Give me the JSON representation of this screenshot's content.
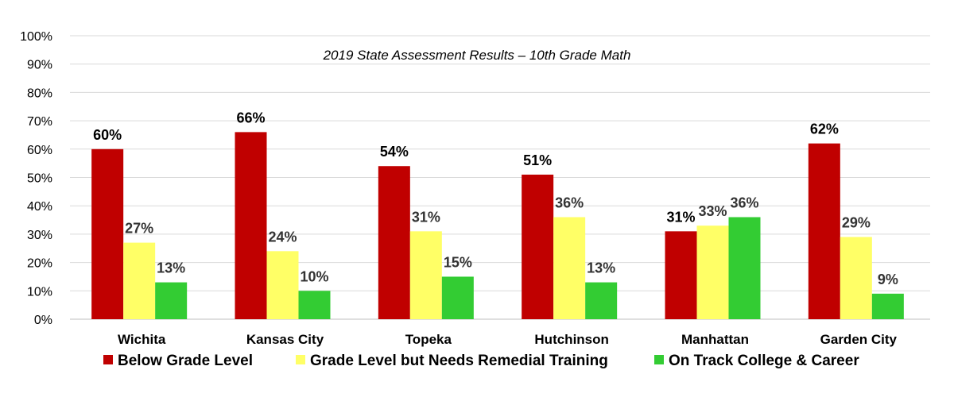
{
  "chart_data": {
    "type": "bar",
    "title": "2019 State Assessment Results – 10th Grade Math",
    "categories": [
      "Wichita",
      "Kansas City",
      "Topeka",
      "Hutchinson",
      "Manhattan",
      "Garden City"
    ],
    "series": [
      {
        "name": "Below Grade Level",
        "color": "#C00000",
        "values": [
          60,
          66,
          54,
          51,
          31,
          62
        ],
        "labels": [
          "60%",
          "66%",
          "54%",
          "51%",
          "31%",
          "62%"
        ]
      },
      {
        "name": "Grade Level but Needs Remedial Training",
        "color": "#FFFF66",
        "values": [
          27,
          24,
          31,
          36,
          33,
          29
        ],
        "labels": [
          "27%",
          "24%",
          "31%",
          "36%",
          "33%",
          "29%"
        ]
      },
      {
        "name": "On Track College & Career",
        "color": "#33CC33",
        "values": [
          13,
          10,
          15,
          13,
          36,
          9
        ],
        "labels": [
          "13%",
          "10%",
          "15%",
          "13%",
          "36%",
          "9%"
        ]
      }
    ],
    "ylim": [
      0,
      100
    ],
    "yticks": [
      "0%",
      "10%",
      "20%",
      "30%",
      "40%",
      "50%",
      "60%",
      "70%",
      "80%",
      "90%",
      "100%"
    ],
    "xlabel": "",
    "ylabel": "",
    "grid": true,
    "legend_position": "bottom"
  }
}
